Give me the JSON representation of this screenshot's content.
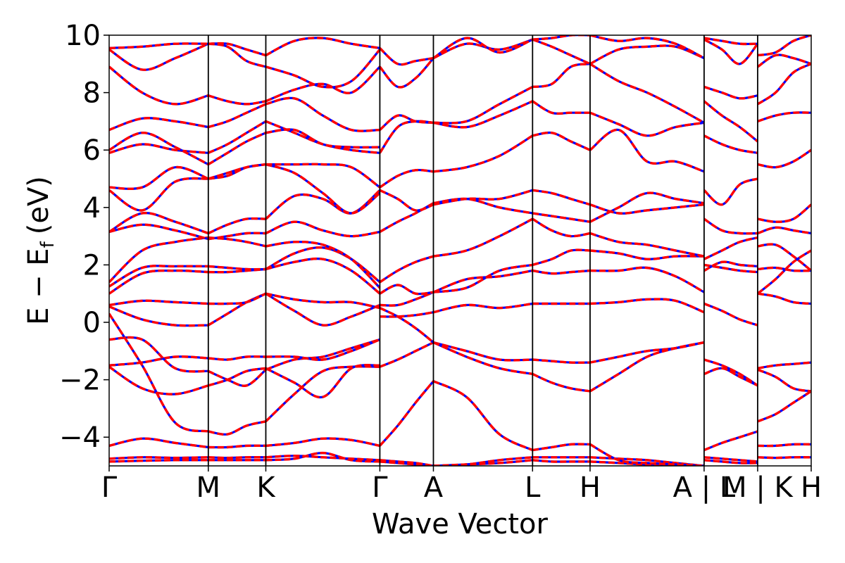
{
  "chart_data": {
    "type": "line",
    "title": "",
    "xlabel": "Wave Vector",
    "ylabel_main": "E − E",
    "ylabel_sub": "f",
    "ylabel_unit": "(eV)",
    "ylim": [
      -5,
      10
    ],
    "yticks": [
      -4,
      -2,
      0,
      2,
      4,
      6,
      8,
      10
    ],
    "ytick_labels": [
      "−4",
      "−2",
      "0",
      "2",
      "4",
      "6",
      "8",
      "10"
    ],
    "grid": false,
    "legend": "none",
    "kpath_ticks": [
      {
        "label": "Γ",
        "x": 0.0
      },
      {
        "label": "M",
        "x": 1.0
      },
      {
        "label": "K",
        "x": 1.58
      },
      {
        "label": "Γ",
        "x": 2.73
      },
      {
        "label": "A",
        "x": 3.27
      },
      {
        "label": "L",
        "x": 4.27
      },
      {
        "label": "H",
        "x": 4.85
      },
      {
        "label": "A | L",
        "x": 6.0
      },
      {
        "label": "M | K",
        "x": 6.54
      },
      {
        "label": "H",
        "x": 7.08
      }
    ],
    "x_range": [
      0,
      7.08
    ],
    "line_colors": {
      "band": "#ff0000",
      "overlay": "#0000ff"
    },
    "series": [
      {
        "segment": "Γ-M",
        "x0": 0.0,
        "x1": 1.0,
        "bands": [
          [
            -4.85,
            -4.82,
            -4.8,
            -4.8
          ],
          [
            -4.75,
            -4.7,
            -4.72,
            -4.7
          ],
          [
            -4.3,
            -4.05,
            -4.2,
            -4.35
          ],
          [
            -1.55,
            -2.3,
            -2.5,
            -2.2
          ],
          [
            -1.5,
            -1.4,
            -1.2,
            -1.25
          ],
          [
            -0.6,
            -0.6,
            -1.6,
            -1.7
          ],
          [
            0.3,
            -1.5,
            -3.5,
            -3.8
          ],
          [
            0.55,
            0.1,
            -0.1,
            -0.1
          ],
          [
            0.6,
            0.75,
            0.7,
            0.65
          ],
          [
            1.0,
            1.7,
            1.8,
            1.75
          ],
          [
            1.25,
            1.9,
            1.95,
            1.95
          ],
          [
            1.4,
            2.5,
            2.8,
            2.95
          ],
          [
            3.15,
            3.4,
            3.2,
            2.9
          ],
          [
            3.15,
            3.8,
            3.5,
            3.1
          ],
          [
            4.6,
            3.9,
            4.9,
            5.0
          ],
          [
            4.7,
            4.7,
            5.4,
            5.0
          ],
          [
            5.9,
            6.2,
            6.0,
            5.9
          ],
          [
            6.0,
            6.6,
            6.1,
            5.5
          ],
          [
            6.7,
            7.1,
            7.0,
            6.8
          ],
          [
            8.9,
            8.0,
            7.6,
            7.9
          ],
          [
            9.5,
            8.8,
            9.2,
            9.7
          ],
          [
            9.55,
            9.6,
            9.7,
            9.7
          ]
        ]
      },
      {
        "segment": "M-K",
        "x0": 1.0,
        "x1": 1.58,
        "bands": [
          [
            -4.8,
            -4.8,
            -4.8,
            -4.8
          ],
          [
            -4.7,
            -4.72,
            -4.7,
            -4.7
          ],
          [
            -4.35,
            -4.35,
            -4.3,
            -4.3
          ],
          [
            -3.8,
            -3.9,
            -3.6,
            -3.45
          ],
          [
            -2.2,
            -2.0,
            -1.7,
            -1.6
          ],
          [
            -1.7,
            -2.0,
            -2.2,
            -1.65
          ],
          [
            -1.25,
            -1.3,
            -1.2,
            -1.2
          ],
          [
            -0.1,
            0.3,
            0.7,
            1.0
          ],
          [
            0.65,
            0.65,
            0.7,
            1.0
          ],
          [
            1.75,
            1.75,
            1.8,
            1.85
          ],
          [
            1.95,
            1.9,
            1.85,
            1.85
          ],
          [
            2.95,
            2.9,
            2.8,
            2.65
          ],
          [
            2.9,
            3.0,
            3.1,
            3.1
          ],
          [
            3.1,
            3.4,
            3.6,
            3.6
          ],
          [
            5.0,
            5.1,
            5.4,
            5.5
          ],
          [
            5.0,
            5.2,
            5.4,
            5.5
          ],
          [
            5.9,
            6.2,
            6.6,
            7.0
          ],
          [
            5.5,
            5.9,
            6.3,
            6.6
          ],
          [
            6.8,
            7.0,
            7.3,
            7.6
          ],
          [
            7.9,
            7.7,
            7.6,
            7.7
          ],
          [
            9.7,
            9.6,
            9.1,
            8.9
          ],
          [
            9.7,
            9.7,
            9.5,
            9.3
          ]
        ]
      },
      {
        "segment": "K-Γ",
        "x0": 1.58,
        "x1": 2.73,
        "bands": [
          [
            -4.8,
            -4.75,
            -4.55,
            -4.8,
            -4.85
          ],
          [
            -4.7,
            -4.65,
            -4.7,
            -4.75,
            -4.8
          ],
          [
            -4.3,
            -4.2,
            -4.05,
            -4.1,
            -4.3
          ],
          [
            -3.45,
            -2.5,
            -1.7,
            -1.55,
            -1.55
          ],
          [
            -1.6,
            -2.1,
            -2.6,
            -1.6,
            -1.5
          ],
          [
            -1.65,
            -1.3,
            -1.2,
            -0.9,
            -0.6
          ],
          [
            -1.2,
            -1.2,
            -1.3,
            -1.0,
            -0.6
          ],
          [
            1.0,
            0.4,
            -0.1,
            0.2,
            0.6
          ],
          [
            1.0,
            0.8,
            0.7,
            0.7,
            0.5
          ],
          [
            1.85,
            2.1,
            2.2,
            1.8,
            1.0
          ],
          [
            1.85,
            2.4,
            2.6,
            2.2,
            1.4
          ],
          [
            2.65,
            2.8,
            2.7,
            2.2,
            1.2
          ],
          [
            3.1,
            3.5,
            3.2,
            3.0,
            3.15
          ],
          [
            3.6,
            4.4,
            4.3,
            3.8,
            4.6
          ],
          [
            5.5,
            5.2,
            4.5,
            3.8,
            4.5
          ],
          [
            5.5,
            5.5,
            5.5,
            5.4,
            4.7
          ],
          [
            7.0,
            6.6,
            6.2,
            6.0,
            5.9
          ],
          [
            6.6,
            6.7,
            6.2,
            6.1,
            6.1
          ],
          [
            7.6,
            7.8,
            7.2,
            6.7,
            6.7
          ],
          [
            7.7,
            8.1,
            8.3,
            8.0,
            8.9
          ],
          [
            8.9,
            8.6,
            8.2,
            8.4,
            9.5
          ],
          [
            9.3,
            9.8,
            9.9,
            9.7,
            9.55
          ]
        ]
      },
      {
        "segment": "Γ-A",
        "x0": 2.73,
        "x1": 3.27,
        "bands": [
          [
            -4.85,
            -4.9,
            -4.95,
            -5.0
          ],
          [
            -4.8,
            -4.85,
            -4.9,
            -5.0
          ],
          [
            -4.3,
            -3.6,
            -2.8,
            -2.05
          ],
          [
            -1.55,
            -1.3,
            -1.0,
            -0.7
          ],
          [
            0.2,
            0.2,
            0.25,
            0.35
          ],
          [
            0.5,
            0.2,
            -0.2,
            -0.7
          ],
          [
            0.6,
            0.6,
            0.8,
            1.05
          ],
          [
            1.0,
            1.3,
            1.0,
            1.05
          ],
          [
            1.4,
            1.8,
            2.1,
            2.3
          ],
          [
            3.15,
            3.5,
            3.8,
            4.15
          ],
          [
            4.6,
            4.3,
            3.9,
            4.1
          ],
          [
            4.7,
            5.1,
            5.3,
            5.25
          ],
          [
            5.9,
            6.8,
            7.0,
            6.95
          ],
          [
            6.7,
            7.2,
            7.0,
            6.95
          ],
          [
            8.9,
            8.2,
            8.5,
            9.2
          ],
          [
            9.55,
            9.0,
            9.1,
            9.2
          ]
        ]
      },
      {
        "segment": "A-L",
        "x0": 3.27,
        "x1": 4.27,
        "bands": [
          [
            -5.0,
            -4.95,
            -4.8,
            -4.7
          ],
          [
            -5.0,
            -4.95,
            -4.9,
            -4.8
          ],
          [
            -2.05,
            -2.6,
            -3.9,
            -4.45
          ],
          [
            -0.7,
            -1.0,
            -1.3,
            -1.3
          ],
          [
            -0.7,
            -1.2,
            -1.6,
            -1.8
          ],
          [
            0.35,
            0.6,
            0.5,
            0.65
          ],
          [
            1.05,
            1.2,
            1.8,
            2.0
          ],
          [
            1.05,
            1.5,
            1.6,
            1.8
          ],
          [
            2.3,
            2.5,
            3.0,
            3.6
          ],
          [
            4.15,
            4.3,
            4.0,
            3.8
          ],
          [
            4.1,
            4.3,
            4.3,
            4.6
          ],
          [
            5.25,
            5.4,
            5.8,
            6.5
          ],
          [
            6.95,
            6.8,
            7.2,
            7.7
          ],
          [
            6.95,
            7.0,
            7.6,
            8.2
          ],
          [
            9.2,
            9.7,
            9.5,
            9.85
          ],
          [
            9.2,
            9.9,
            9.4,
            9.85
          ]
        ]
      },
      {
        "segment": "L-H",
        "x0": 4.27,
        "x1": 4.85,
        "bands": [
          [
            -4.7,
            -4.7,
            -4.7,
            -4.7
          ],
          [
            -4.8,
            -4.85,
            -4.85,
            -4.85
          ],
          [
            -4.45,
            -4.35,
            -4.25,
            -4.25
          ],
          [
            -1.3,
            -1.35,
            -1.4,
            -1.4
          ],
          [
            -1.8,
            -2.1,
            -2.3,
            -2.4
          ],
          [
            0.65,
            0.65,
            0.65,
            0.65
          ],
          [
            2.0,
            2.2,
            2.5,
            2.5
          ],
          [
            1.8,
            1.7,
            1.75,
            1.8
          ],
          [
            3.6,
            3.2,
            3.0,
            3.1
          ],
          [
            3.8,
            3.7,
            3.6,
            3.5
          ],
          [
            4.6,
            4.5,
            4.3,
            4.1
          ],
          [
            6.5,
            6.6,
            6.3,
            6.0
          ],
          [
            7.7,
            7.3,
            7.3,
            7.3
          ],
          [
            8.2,
            8.3,
            8.9,
            9.0
          ],
          [
            9.85,
            9.6,
            9.3,
            9.0
          ],
          [
            9.85,
            9.9,
            10.0,
            10.0
          ]
        ]
      },
      {
        "segment": "H-A",
        "x0": 4.85,
        "x1": 6.0,
        "bands": [
          [
            -4.7,
            -4.75,
            -4.8,
            -4.9,
            -5.0
          ],
          [
            -4.85,
            -4.9,
            -4.95,
            -4.95,
            -5.0
          ],
          [
            -4.25,
            -4.8,
            -4.9,
            -4.95,
            -5.0
          ],
          [
            -1.4,
            -1.2,
            -1.0,
            -0.9,
            -0.7
          ],
          [
            -2.4,
            -1.8,
            -1.2,
            -0.9,
            -0.7
          ],
          [
            0.65,
            0.7,
            0.8,
            0.75,
            0.35
          ],
          [
            2.5,
            2.4,
            2.2,
            2.3,
            2.3
          ],
          [
            1.8,
            1.8,
            1.9,
            1.6,
            1.05
          ],
          [
            3.1,
            2.8,
            2.7,
            2.5,
            2.3
          ],
          [
            3.5,
            4.0,
            4.5,
            4.3,
            4.15
          ],
          [
            4.1,
            3.8,
            3.9,
            4.0,
            4.1
          ],
          [
            6.0,
            6.7,
            5.6,
            5.6,
            5.25
          ],
          [
            7.3,
            6.9,
            6.5,
            6.8,
            6.95
          ],
          [
            9.0,
            8.4,
            8.0,
            7.5,
            6.95
          ],
          [
            9.0,
            9.5,
            9.6,
            9.6,
            9.2
          ],
          [
            10.0,
            9.8,
            9.9,
            9.7,
            9.2
          ]
        ]
      },
      {
        "segment": "L-M",
        "x0": 6.0,
        "x1": 6.54,
        "bands": [
          [
            -4.45,
            -4.2,
            -4.0,
            -3.8
          ],
          [
            -4.7,
            -4.75,
            -4.8,
            -4.85
          ],
          [
            -4.8,
            -4.85,
            -4.9,
            -4.9
          ],
          [
            -1.3,
            -1.5,
            -1.8,
            -2.2
          ],
          [
            -1.8,
            -1.6,
            -1.9,
            -2.2
          ],
          [
            0.65,
            0.4,
            0.1,
            -0.1
          ],
          [
            2.0,
            1.9,
            1.8,
            1.75
          ],
          [
            1.8,
            2.1,
            2.0,
            1.95
          ],
          [
            2.2,
            2.5,
            2.8,
            2.95
          ],
          [
            3.6,
            3.2,
            3.1,
            3.1
          ],
          [
            4.6,
            4.1,
            4.8,
            5.0
          ],
          [
            6.5,
            6.2,
            6.0,
            5.9
          ],
          [
            7.7,
            7.2,
            6.8,
            6.3
          ],
          [
            8.2,
            8.0,
            7.8,
            7.9
          ],
          [
            9.85,
            9.5,
            9.0,
            9.7
          ],
          [
            9.9,
            9.8,
            9.7,
            9.7
          ]
        ]
      },
      {
        "segment": "K-H",
        "x0": 6.54,
        "x1": 7.08,
        "bands": [
          [
            -4.3,
            -4.3,
            -4.25,
            -4.25
          ],
          [
            -4.7,
            -4.72,
            -4.7,
            -4.7
          ],
          [
            -3.45,
            -3.2,
            -2.8,
            -2.4
          ],
          [
            -1.6,
            -1.5,
            -1.45,
            -1.4
          ],
          [
            -1.65,
            -1.9,
            -2.3,
            -2.4
          ],
          [
            1.0,
            0.9,
            0.7,
            0.65
          ],
          [
            1.0,
            1.5,
            2.1,
            2.5
          ],
          [
            1.85,
            1.9,
            1.8,
            1.8
          ],
          [
            2.65,
            2.7,
            2.3,
            1.8
          ],
          [
            3.1,
            3.3,
            3.2,
            3.1
          ],
          [
            3.6,
            3.5,
            3.6,
            4.1
          ],
          [
            5.5,
            5.4,
            5.6,
            6.0
          ],
          [
            7.0,
            7.2,
            7.3,
            7.3
          ],
          [
            7.6,
            8.0,
            8.7,
            9.0
          ],
          [
            8.9,
            9.3,
            9.2,
            9.0
          ],
          [
            9.3,
            9.4,
            9.8,
            10.0
          ]
        ]
      }
    ]
  }
}
